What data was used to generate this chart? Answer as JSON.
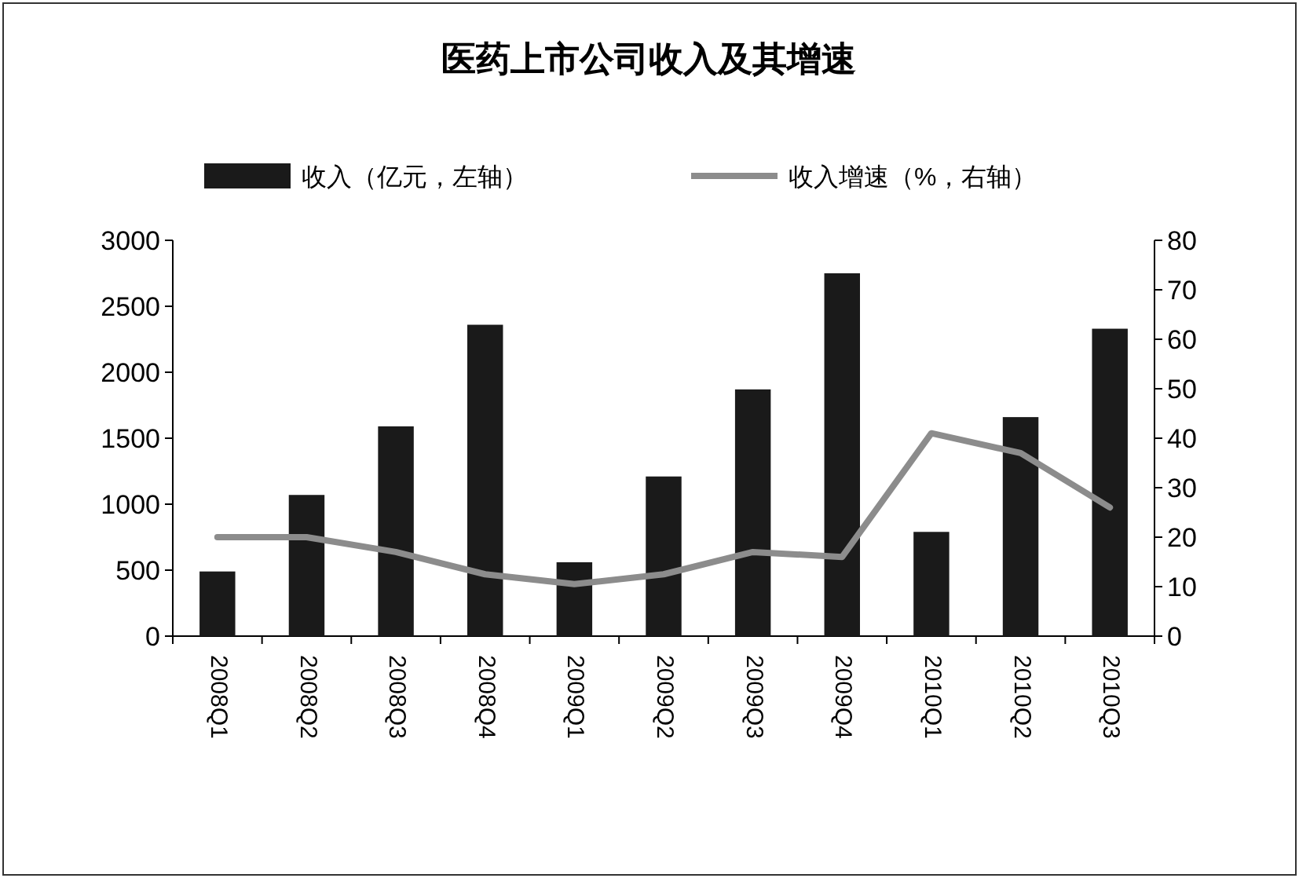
{
  "chart_data": {
    "type": "bar",
    "title": "医药上市公司收入及其增速",
    "categories": [
      "2008Q1",
      "2008Q2",
      "2008Q3",
      "2008Q4",
      "2009Q1",
      "2009Q2",
      "2009Q3",
      "2009Q4",
      "2010Q1",
      "2010Q2",
      "2010Q3"
    ],
    "series": [
      {
        "name": "收入（亿元，左轴）",
        "color": "#1a1a1a",
        "values": [
          490,
          1070,
          1590,
          2360,
          560,
          1210,
          1870,
          2750,
          790,
          1660,
          2330
        ]
      },
      {
        "name": "收入增速（%，右轴）",
        "color": "#8c8c8c",
        "type": "line",
        "axis": "y2",
        "values": [
          20,
          20,
          17,
          12.5,
          10.5,
          12.5,
          17,
          16,
          41,
          37,
          26
        ]
      }
    ],
    "ylim": [
      0,
      3000
    ],
    "yticks": [
      0,
      500,
      1000,
      1500,
      2000,
      2500,
      3000
    ],
    "y2lim": [
      0,
      80
    ],
    "y2ticks": [
      0,
      10,
      20,
      30,
      40,
      50,
      60,
      70,
      80
    ],
    "legend": "top",
    "grid": false
  }
}
